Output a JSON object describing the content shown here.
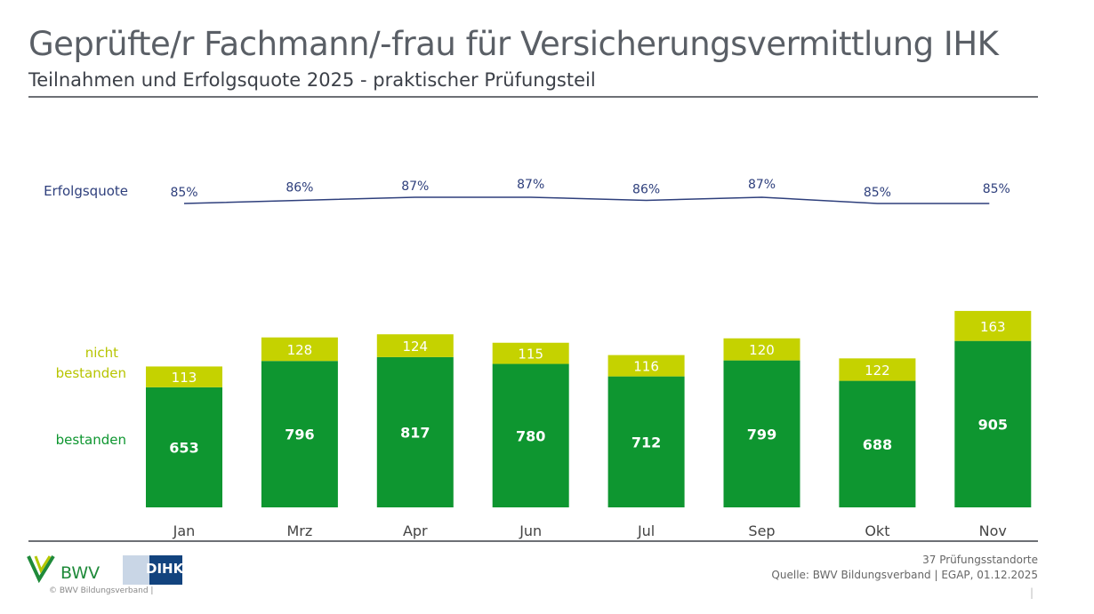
{
  "header": {
    "title": "Geprüfte/r Fachmann/-frau für Versicherungsvermittlung IHK",
    "subtitle": "Teilnahmen und Erfolgsquote 2025 - praktischer Prüfungsteil"
  },
  "chart_data": {
    "type": "bar",
    "stacked": true,
    "categories": [
      "Jan",
      "Mrz",
      "Apr",
      "Jun",
      "Jul",
      "Sep",
      "Okt",
      "Nov"
    ],
    "series": [
      {
        "name": "bestanden",
        "values": [
          653,
          796,
          817,
          780,
          712,
          799,
          688,
          905
        ],
        "color": "#0e9630"
      },
      {
        "name": "nicht bestanden",
        "values": [
          113,
          128,
          124,
          115,
          116,
          120,
          122,
          163
        ],
        "color": "#c5d200"
      }
    ],
    "line": {
      "name": "Erfolgsquote",
      "values": [
        85,
        86,
        87,
        87,
        86,
        87,
        85,
        85
      ],
      "unit": "%",
      "color": "#2e3f7c"
    },
    "legend_labels": {
      "line": "Erfolgsquote",
      "nicht_1": "nicht",
      "nicht_2": "bestanden",
      "bestanden": "bestanden"
    }
  },
  "footer": {
    "locations": "37 Prüfungsstandorte",
    "source": "Quelle: BWV Bildungsverband | EGAP, 01.12.2025",
    "copyright": "© BWV Bildungsverband |",
    "page_sep": "|",
    "logo_bwv": "BWV",
    "logo_dihk": "DIHK"
  }
}
